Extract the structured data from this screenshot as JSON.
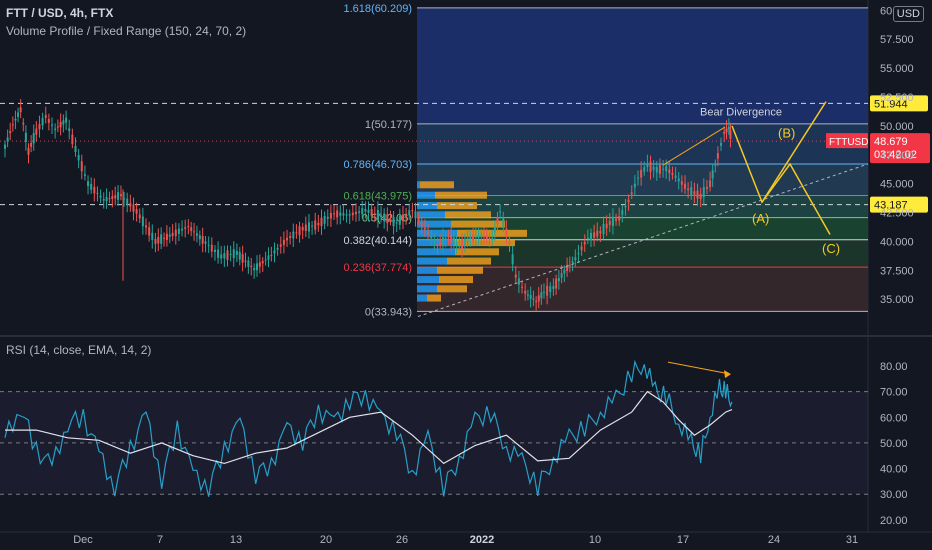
{
  "header": {
    "symbol_line": "FTT / USD, 4h, FTX",
    "volume_profile": "Volume Profile / Fixed Range (150, 24, 70, 2)",
    "rsi_label": "RSI (14, close, EMA, 14, 2)",
    "currency": "USD"
  },
  "chart_data": {
    "type": "line",
    "instrument": "FTT / USD",
    "interval": "4h",
    "price_axis": {
      "ticks": [
        "60.000",
        "57.500",
        "55.000",
        "52.500",
        "50.000",
        "47.500",
        "45.000",
        "42.500",
        "40.000",
        "37.500",
        "35.000"
      ],
      "ylim": [
        33.2,
        60.2
      ]
    },
    "x_axis_ticks": [
      "Dec",
      "7",
      "13",
      "20",
      "26",
      "2022",
      "10",
      "17",
      "24",
      "31"
    ],
    "price_series": [
      [
        0,
        48.2
      ],
      [
        0.5,
        50.1
      ],
      [
        1,
        51.4
      ],
      [
        1.5,
        47.8
      ],
      [
        2,
        49.5
      ],
      [
        2.6,
        50.8
      ],
      [
        3.2,
        49.7
      ],
      [
        3.9,
        50.5
      ],
      [
        4.5,
        48.0
      ],
      [
        5.3,
        45.0
      ],
      [
        6.3,
        43.6
      ],
      [
        7.4,
        44.0
      ],
      [
        8.4,
        42.6
      ],
      [
        9.6,
        40.0
      ],
      [
        10.7,
        40.6
      ],
      [
        11.7,
        41.3
      ],
      [
        12.8,
        39.9
      ],
      [
        13.8,
        38.7
      ],
      [
        14.8,
        39.0
      ],
      [
        15.9,
        37.6
      ],
      [
        17.0,
        38.8
      ],
      [
        18.0,
        40.2
      ],
      [
        19.0,
        41.1
      ],
      [
        20.0,
        41.5
      ],
      [
        21.0,
        42.4
      ],
      [
        22.0,
        42.3
      ],
      [
        23.0,
        42.7
      ],
      [
        24.0,
        42.2
      ],
      [
        25.0,
        41.6
      ],
      [
        26.0,
        42.7
      ],
      [
        27.0,
        40.7
      ],
      [
        27.6,
        39.7
      ],
      [
        28.3,
        40.4
      ],
      [
        29.0,
        39.6
      ],
      [
        29.7,
        40.3
      ],
      [
        30.4,
        40.5
      ],
      [
        31.1,
        40.2
      ],
      [
        31.6,
        42.6
      ],
      [
        32.2,
        39.9
      ],
      [
        32.6,
        37.0
      ],
      [
        33.2,
        35.6
      ],
      [
        33.9,
        34.8
      ],
      [
        34.4,
        35.6
      ],
      [
        35.0,
        36.0
      ],
      [
        35.7,
        37.4
      ],
      [
        36.4,
        38.5
      ],
      [
        37.2,
        40.3
      ],
      [
        38.0,
        40.8
      ],
      [
        38.6,
        41.6
      ],
      [
        39.2,
        42.0
      ],
      [
        39.8,
        43.5
      ],
      [
        40.4,
        45.5
      ],
      [
        41.0,
        46.6
      ],
      [
        41.6,
        46.2
      ],
      [
        42.2,
        46.3
      ],
      [
        42.8,
        45.6
      ],
      [
        43.6,
        44.5
      ],
      [
        44.4,
        43.9
      ],
      [
        45.0,
        45.0
      ],
      [
        45.5,
        47.4
      ],
      [
        45.9,
        49.4
      ],
      [
        46.2,
        49.8
      ],
      [
        46.4,
        48.7
      ]
    ],
    "fibonacci_levels": [
      {
        "ratio": "1",
        "value": 50.177,
        "label": "1(50.177)",
        "color": "#b2b5be"
      },
      {
        "ratio": "0.786",
        "value": 46.703,
        "label": "0.786(46.703)",
        "color": "#64b5f6"
      },
      {
        "ratio": "0.618",
        "value": 43.975,
        "label": "0.618(43.975)",
        "color": "#4caf50"
      },
      {
        "ratio": "0.5",
        "value": 42.06,
        "label": "0.5(42.06)",
        "color": "#81c784"
      },
      {
        "ratio": "0.382",
        "value": 40.144,
        "label": "0.382(40.144)",
        "color": "#d1d4dc"
      },
      {
        "ratio": "0.236",
        "value": 37.774,
        "label": "0.236(37.774)",
        "color": "#f23645"
      },
      {
        "ratio": "0",
        "value": 33.943,
        "label": "0(33.943)",
        "color": "#b2b5be"
      }
    ],
    "fib_top_label": "1.618(60.209)",
    "fib_top_value": 60.209,
    "horizontal_levels": [
      {
        "value": 51.944,
        "label": "51.944"
      },
      {
        "value": 43.187,
        "label": "43.187"
      }
    ],
    "current_price": {
      "label": "FTTUSD",
      "value": "48.679",
      "countdown": "03:42:02",
      "price": 48.679
    },
    "annotations": {
      "bear_divergence": "Bear Divergence",
      "wave_a": "(A)",
      "wave_b": "(B)",
      "wave_c": "(C)"
    },
    "volume_profile_bins": [
      {
        "price": 44.9,
        "up": 3,
        "down": 34
      },
      {
        "price": 44.0,
        "up": 18,
        "down": 52
      },
      {
        "price": 43.1,
        "up": 20,
        "down": 40
      },
      {
        "price": 42.3,
        "up": 28,
        "down": 46
      },
      {
        "price": 41.5,
        "up": 34,
        "down": 54
      },
      {
        "price": 40.7,
        "up": 40,
        "down": 70
      },
      {
        "price": 39.9,
        "up": 36,
        "down": 62
      },
      {
        "price": 39.1,
        "up": 38,
        "down": 44
      },
      {
        "price": 38.3,
        "up": 30,
        "down": 44
      },
      {
        "price": 37.5,
        "up": 20,
        "down": 46
      },
      {
        "price": 36.7,
        "up": 22,
        "down": 34
      },
      {
        "price": 35.9,
        "up": 20,
        "down": 30
      },
      {
        "price": 35.1,
        "up": 10,
        "down": 14
      }
    ],
    "rsi": {
      "ticks": [
        "80.00",
        "70.00",
        "60.00",
        "50.00",
        "40.00",
        "30.00",
        "20.00"
      ],
      "ylim": [
        18,
        87
      ],
      "bands": [
        70,
        50,
        30
      ],
      "rsi_line": [
        [
          0,
          52
        ],
        [
          1,
          64
        ],
        [
          2,
          47
        ],
        [
          3,
          41
        ],
        [
          4,
          58
        ],
        [
          5,
          60
        ],
        [
          6,
          46
        ],
        [
          7,
          33
        ],
        [
          8,
          48
        ],
        [
          9,
          61
        ],
        [
          10,
          36
        ],
        [
          11,
          56
        ],
        [
          12,
          38
        ],
        [
          13,
          33
        ],
        [
          14,
          48
        ],
        [
          15,
          58
        ],
        [
          16,
          38
        ],
        [
          17,
          42
        ],
        [
          18,
          56
        ],
        [
          19,
          51
        ],
        [
          20,
          63
        ],
        [
          21,
          58
        ],
        [
          22,
          67
        ],
        [
          23,
          69
        ],
        [
          24,
          60
        ],
        [
          25,
          55
        ],
        [
          26,
          38
        ],
        [
          27,
          52
        ],
        [
          28,
          33
        ],
        [
          29,
          44
        ],
        [
          30,
          59
        ],
        [
          31,
          62
        ],
        [
          32,
          48
        ],
        [
          33,
          43
        ],
        [
          34,
          33
        ],
        [
          35,
          44
        ],
        [
          36,
          52
        ],
        [
          37,
          56
        ],
        [
          38,
          62
        ],
        [
          39,
          67
        ],
        [
          40,
          77
        ],
        [
          40.8,
          81
        ],
        [
          41.5,
          70
        ],
        [
          42.2,
          68
        ],
        [
          43,
          58
        ],
        [
          43.8,
          50
        ],
        [
          44.4,
          45
        ],
        [
          45.0,
          61
        ],
        [
          45.6,
          71
        ],
        [
          46.0,
          70
        ],
        [
          46.4,
          66
        ]
      ],
      "ema_line": [
        [
          0,
          55
        ],
        [
          2,
          55
        ],
        [
          4,
          52
        ],
        [
          6,
          51
        ],
        [
          8,
          46
        ],
        [
          10,
          50
        ],
        [
          12,
          45
        ],
        [
          14,
          42
        ],
        [
          16,
          46
        ],
        [
          18,
          48
        ],
        [
          20,
          54
        ],
        [
          22,
          60
        ],
        [
          24,
          62
        ],
        [
          26,
          53
        ],
        [
          28,
          42
        ],
        [
          30,
          49
        ],
        [
          32,
          53
        ],
        [
          34,
          43
        ],
        [
          36,
          44
        ],
        [
          38,
          55
        ],
        [
          40,
          62
        ],
        [
          41,
          70
        ],
        [
          42,
          66
        ],
        [
          43,
          59
        ],
        [
          44,
          53
        ],
        [
          45,
          57
        ],
        [
          46,
          62
        ],
        [
          46.4,
          63
        ]
      ]
    }
  }
}
